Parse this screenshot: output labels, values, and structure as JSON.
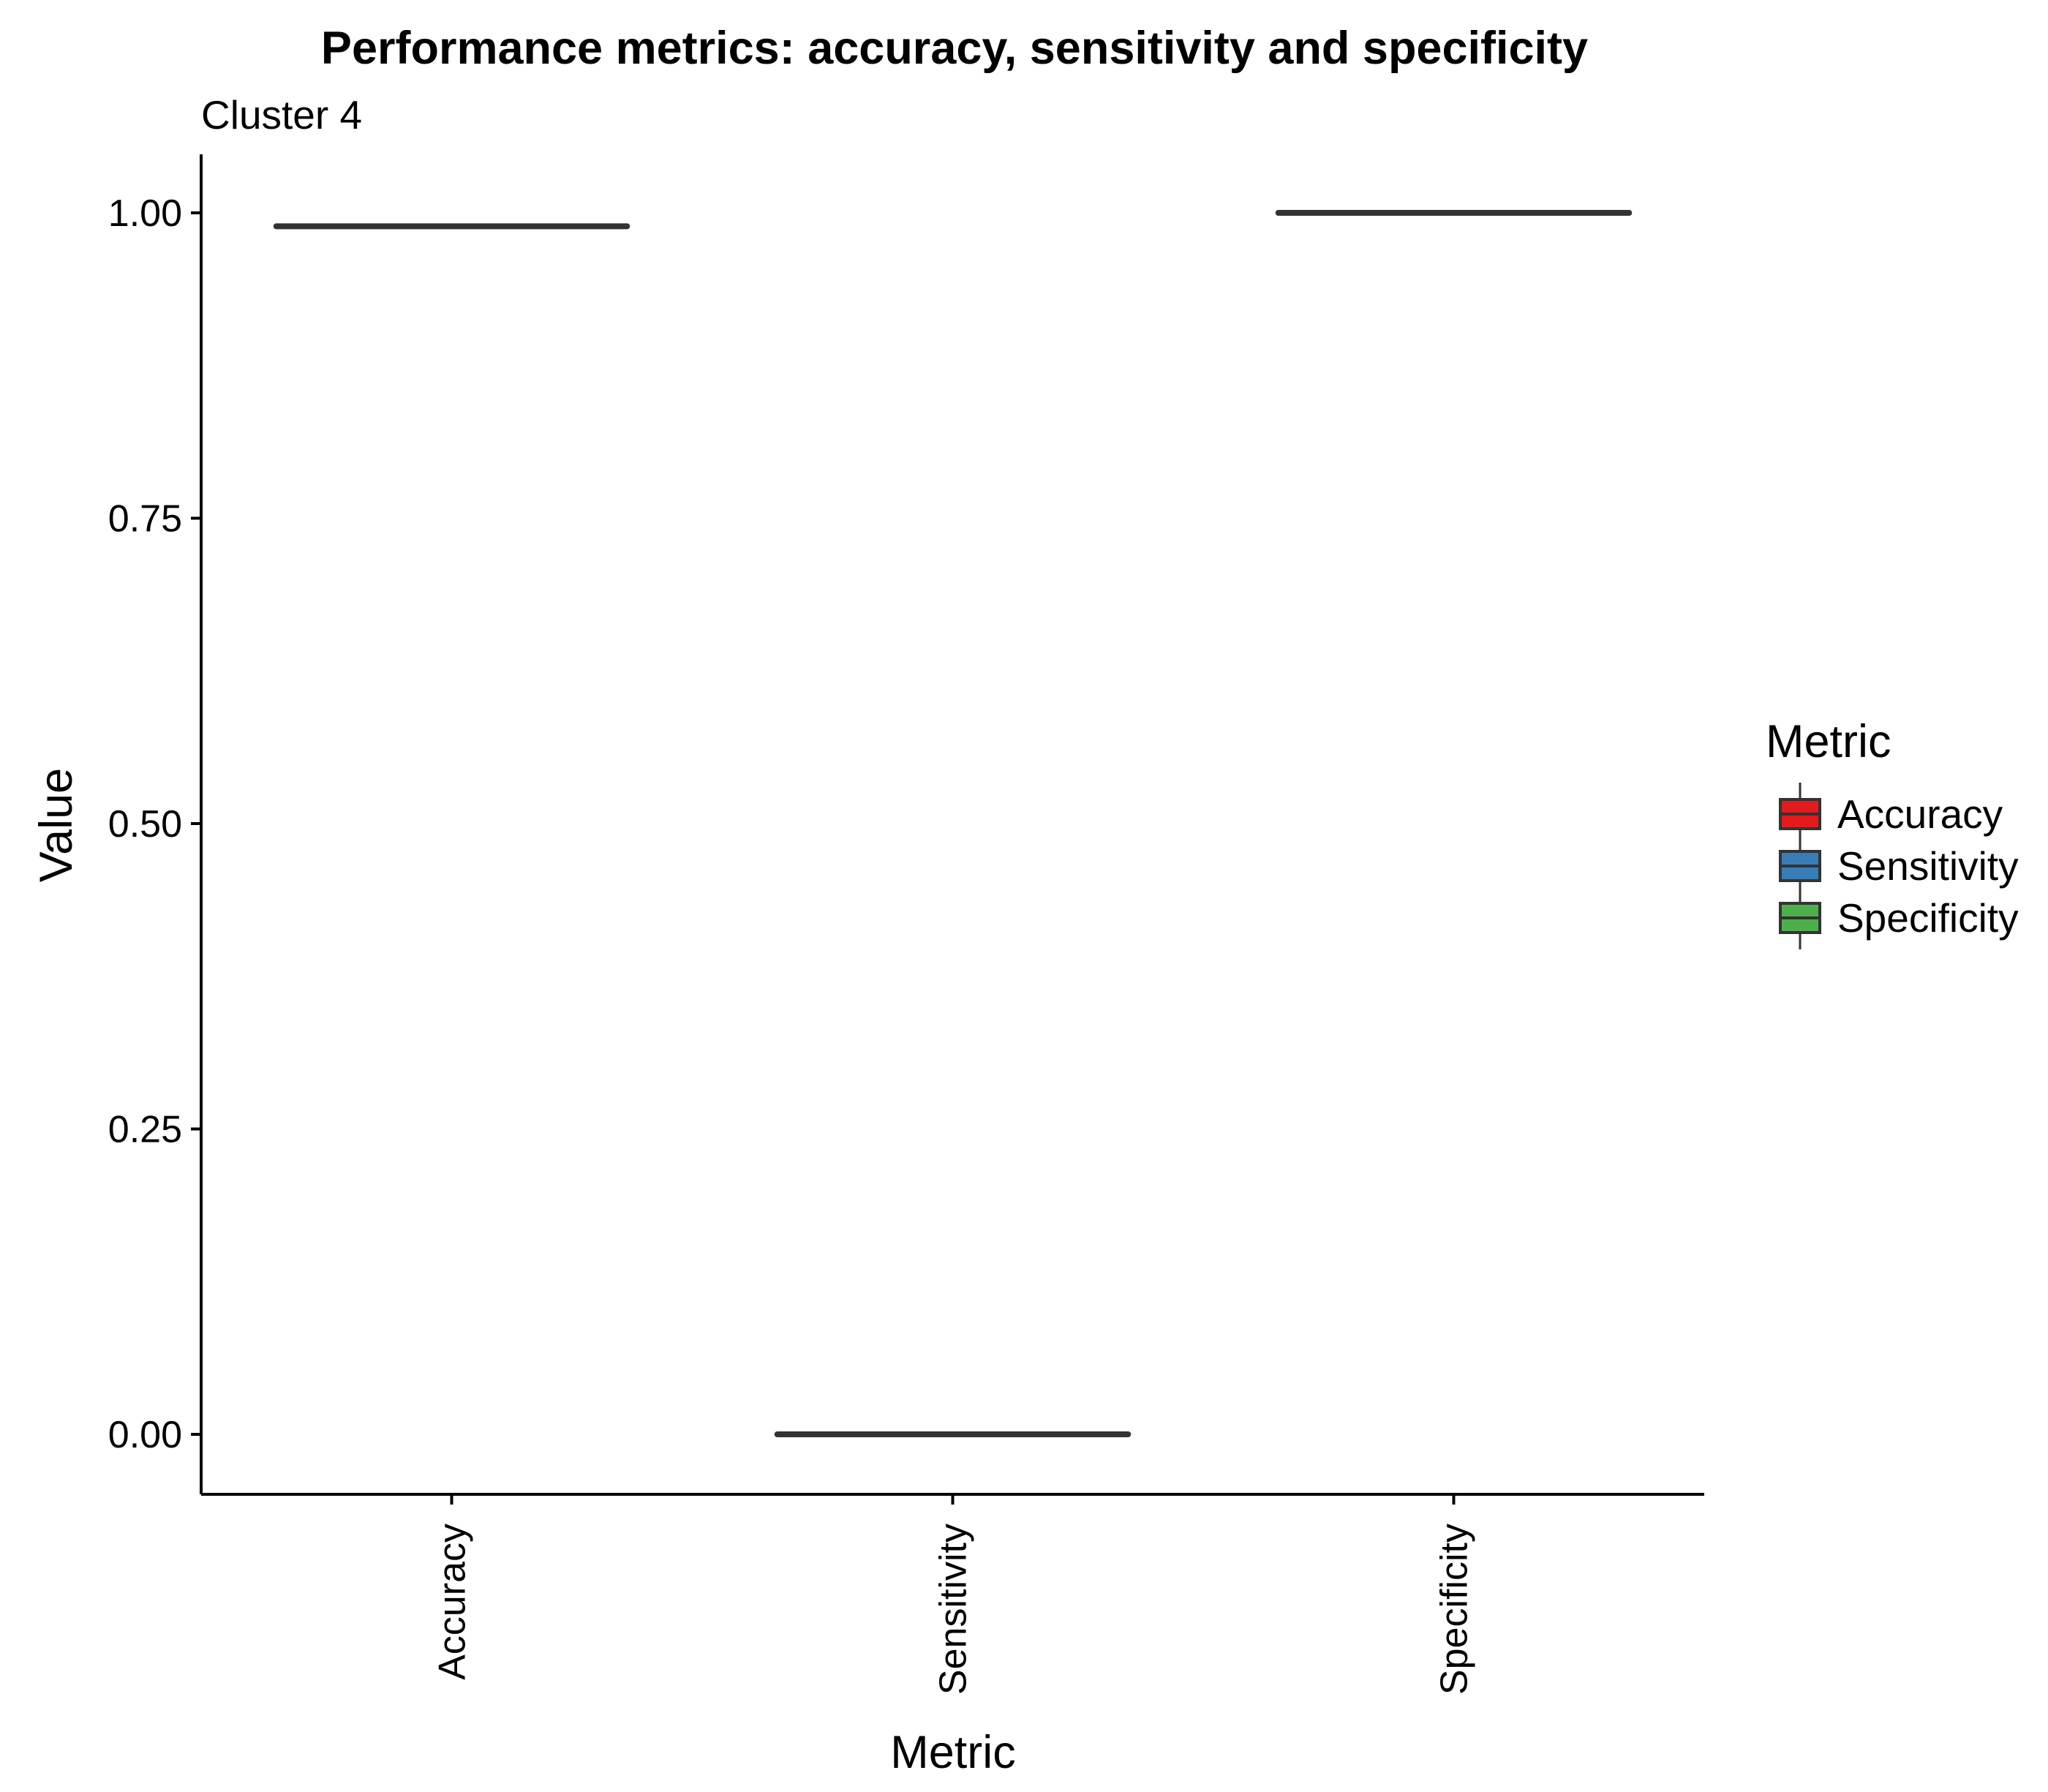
{
  "chart_data": {
    "type": "box",
    "title": "Performance metrics: accuracy, sensitivity and specificity",
    "subtitle": "Cluster 4",
    "xlabel": "Metric",
    "ylabel": "Value",
    "ylim": [
      -0.1,
      1.12
    ],
    "y_ticks": [
      0.0,
      0.25,
      0.5,
      0.75,
      1.0
    ],
    "y_tick_labels": [
      "0.00",
      "0.25",
      "0.50",
      "0.75",
      "1.00"
    ],
    "categories": [
      "Accuracy",
      "Sensitivity",
      "Specificity"
    ],
    "values": [
      0.989,
      0.0,
      1.0
    ],
    "grid": false,
    "legend": {
      "title": "Metric",
      "placement": "right",
      "entries": [
        {
          "label": "Accuracy",
          "color": "#E41A1C"
        },
        {
          "label": "Sensitivity",
          "color": "#377EB8"
        },
        {
          "label": "Specificity",
          "color": "#4DAF4A"
        }
      ]
    },
    "box_line_color": "#333333"
  }
}
